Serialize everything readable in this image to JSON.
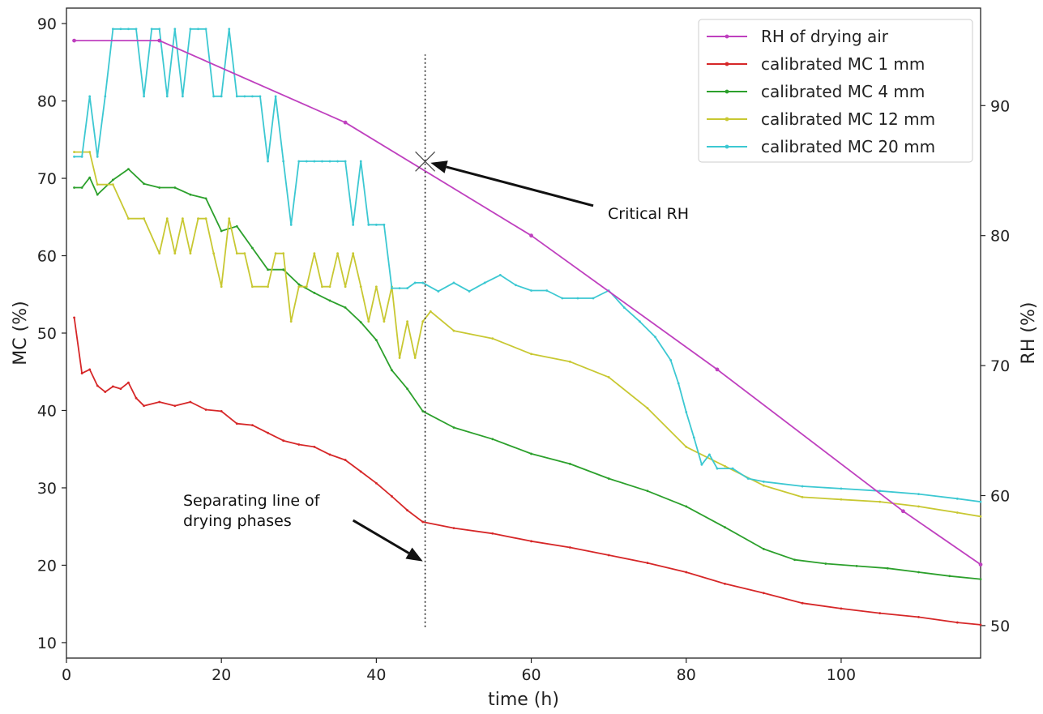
{
  "chart_data": {
    "type": "line",
    "xlabel": "time (h)",
    "ylabel_left": "MC (%)",
    "ylabel_right": "RH (%)",
    "xlim": [
      0,
      118
    ],
    "ylim_left": [
      8,
      92
    ],
    "ylim_right": [
      47.5,
      97.5
    ],
    "x_ticks": [
      0,
      20,
      40,
      60,
      80,
      100
    ],
    "y_left_ticks": [
      10,
      20,
      30,
      40,
      50,
      60,
      70,
      80,
      90
    ],
    "y_right_ticks": [
      50,
      60,
      70,
      80,
      90
    ],
    "grid": false,
    "legend_position": "top-right",
    "series": [
      {
        "name": "RH of drying air",
        "axis": "right",
        "color": "#bf40bf",
        "x": [
          1,
          12,
          36,
          60,
          84,
          108,
          118
        ],
        "y": [
          95,
          95,
          88.7,
          80,
          69.7,
          58.8,
          54.7
        ]
      },
      {
        "name": "calibrated MC 1 mm",
        "axis": "left",
        "color": "#d62728",
        "x": [
          1,
          2,
          3,
          4,
          5,
          6,
          7,
          8,
          9,
          10,
          12,
          14,
          16,
          18,
          20,
          22,
          24,
          26,
          28,
          30,
          32,
          34,
          36,
          38,
          40,
          42,
          44,
          46,
          50,
          55,
          60,
          65,
          70,
          75,
          80,
          85,
          90,
          95,
          100,
          105,
          110,
          115,
          118
        ],
        "y": [
          52,
          44.8,
          45.3,
          43.2,
          42.4,
          43.1,
          42.8,
          43.6,
          41.6,
          40.6,
          41.1,
          40.6,
          41.1,
          40.1,
          39.9,
          38.3,
          38.1,
          37.1,
          36.1,
          35.6,
          35.3,
          34.3,
          33.6,
          32.1,
          30.6,
          28.9,
          27.1,
          25.6,
          24.8,
          24.1,
          23.1,
          22.3,
          21.3,
          20.3,
          19.1,
          17.6,
          16.4,
          15.1,
          14.4,
          13.8,
          13.3,
          12.6,
          12.3
        ]
      },
      {
        "name": "calibrated MC 4 mm",
        "axis": "left",
        "color": "#2ca02c",
        "x": [
          1,
          2,
          3,
          4,
          6,
          8,
          10,
          12,
          14,
          16,
          18,
          20,
          22,
          24,
          26,
          28,
          30,
          32,
          34,
          36,
          38,
          40,
          42,
          44,
          46,
          50,
          55,
          60,
          65,
          70,
          75,
          80,
          85,
          90,
          94,
          98,
          102,
          106,
          110,
          114,
          118
        ],
        "y": [
          68.8,
          68.8,
          70.1,
          67.9,
          69.8,
          71.2,
          69.3,
          68.8,
          68.8,
          67.9,
          67.4,
          63.2,
          63.8,
          61,
          58.2,
          58.2,
          56.3,
          55.2,
          54.2,
          53.3,
          51.4,
          49.1,
          45.2,
          42.8,
          39.9,
          37.8,
          36.3,
          34.4,
          33.1,
          31.2,
          29.6,
          27.6,
          24.9,
          22.1,
          20.7,
          20.2,
          19.9,
          19.6,
          19.1,
          18.6,
          18.2
        ]
      },
      {
        "name": "calibrated MC 12 mm",
        "axis": "left",
        "color": "#c8c832",
        "x": [
          1,
          3,
          4,
          6,
          8,
          10,
          12,
          13,
          14,
          15,
          16,
          17,
          18,
          19,
          20,
          21,
          22,
          23,
          24,
          26,
          27,
          28,
          29,
          30,
          31,
          32,
          33,
          34,
          35,
          36,
          37,
          38,
          39,
          40,
          41,
          42,
          43,
          44,
          45,
          46,
          47,
          50,
          55,
          60,
          65,
          70,
          75,
          80,
          85,
          90,
          95,
          100,
          105,
          110,
          115,
          118
        ],
        "y": [
          73.4,
          73.4,
          69.2,
          69.2,
          64.8,
          64.8,
          60.3,
          64.8,
          60.3,
          64.8,
          60.3,
          64.8,
          64.8,
          60.3,
          56,
          64.8,
          60.3,
          60.3,
          56,
          56,
          60.3,
          60.3,
          51.5,
          56,
          56,
          60.3,
          56,
          56,
          60.3,
          56,
          60.3,
          56,
          51.5,
          56,
          51.5,
          56,
          46.8,
          51.5,
          46.8,
          51.5,
          52.8,
          50.3,
          49.3,
          47.3,
          46.3,
          44.3,
          40.3,
          35.3,
          32.8,
          30.3,
          28.8,
          28.5,
          28.2,
          27.6,
          26.8,
          26.3
        ]
      },
      {
        "name": "calibrated MC 20 mm",
        "axis": "left",
        "color": "#3cc8d2",
        "x": [
          1,
          2,
          3,
          4,
          5,
          6,
          7,
          8,
          9,
          10,
          11,
          12,
          13,
          14,
          15,
          16,
          17,
          18,
          19,
          20,
          21,
          22,
          23,
          24,
          25,
          26,
          27,
          28,
          29,
          30,
          31,
          32,
          33,
          34,
          35,
          36,
          37,
          38,
          39,
          40,
          41,
          42,
          43,
          44,
          45,
          46,
          48,
          50,
          52,
          54,
          56,
          58,
          60,
          62,
          64,
          66,
          68,
          70,
          72,
          74,
          76,
          78,
          79,
          80,
          81,
          82,
          83,
          84,
          86,
          88,
          90,
          95,
          100,
          105,
          110,
          115,
          118
        ],
        "y": [
          72.8,
          72.8,
          80.6,
          72.8,
          80.6,
          89.3,
          89.3,
          89.3,
          89.3,
          80.6,
          89.3,
          89.3,
          80.6,
          89.3,
          80.6,
          89.3,
          89.3,
          89.3,
          80.6,
          80.6,
          89.3,
          80.6,
          80.6,
          80.6,
          80.6,
          72.2,
          80.6,
          72.2,
          64,
          72.2,
          72.2,
          72.2,
          72.2,
          72.2,
          72.2,
          72.2,
          64,
          72.2,
          64,
          64,
          64,
          55.8,
          55.8,
          55.8,
          56.5,
          56.5,
          55.4,
          56.5,
          55.4,
          56.5,
          57.5,
          56.2,
          55.5,
          55.5,
          54.5,
          54.5,
          54.5,
          55.5,
          53.3,
          51.5,
          49.5,
          46.5,
          43.5,
          39.8,
          36.5,
          33,
          34.3,
          32.5,
          32.5,
          31.2,
          30.8,
          30.2,
          29.9,
          29.6,
          29.2,
          28.6,
          28.2
        ]
      }
    ],
    "vline": {
      "x": 46.3,
      "style": "dotted",
      "y_from": 12,
      "y_to": 86
    },
    "critical_point": {
      "x": 46.3,
      "y_right": 85.7
    },
    "annotations": [
      {
        "text": "Critical RH",
        "arrow_to": {
          "x": 47,
          "y_right": 85.6
        },
        "arrow_from": {
          "x": 68,
          "y_right": 82.3
        }
      },
      {
        "text": "Separating line of drying phases",
        "lines": [
          "Separating line of",
          "drying phases"
        ],
        "arrow_to": {
          "x": 46,
          "y": 20.5
        },
        "arrow_from": {
          "x": 37,
          "y": 25.8
        }
      }
    ]
  }
}
